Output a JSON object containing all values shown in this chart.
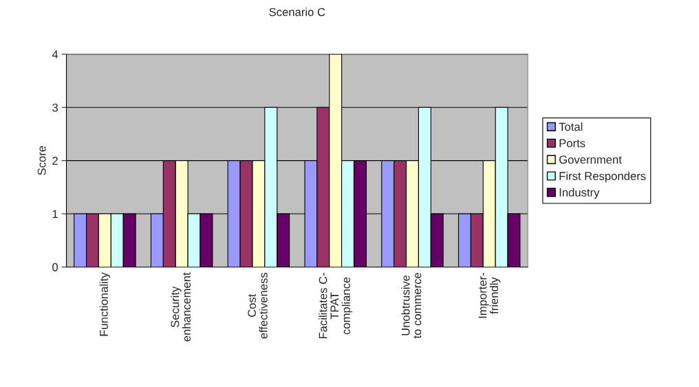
{
  "chart_data": {
    "type": "bar",
    "title": "Scenario C",
    "ylabel": "Score",
    "categories": [
      "Functionality",
      "Security\nenhancement",
      "Cost\neffectiveness",
      "Facilitates C-\nTPAT\ncompliance",
      "Unobtrusive\nto commerce",
      "Importer-\nfriendly"
    ],
    "series": [
      {
        "name": "Total",
        "color": "#9999ff",
        "values": [
          1,
          1,
          2,
          2,
          2,
          1
        ]
      },
      {
        "name": "Ports",
        "color": "#993366",
        "values": [
          1,
          2,
          2,
          3,
          2,
          1
        ]
      },
      {
        "name": "Government",
        "color": "#ffffcc",
        "values": [
          1,
          2,
          2,
          4,
          2,
          2
        ]
      },
      {
        "name": "First Responders",
        "color": "#ccffff",
        "values": [
          1,
          1,
          3,
          2,
          3,
          3
        ]
      },
      {
        "name": "Industry",
        "color": "#660066",
        "values": [
          1,
          1,
          1,
          2,
          1,
          1
        ]
      }
    ],
    "ylim": [
      0,
      4
    ],
    "yticks": [
      0,
      1,
      2,
      3,
      4
    ],
    "grid": "y",
    "legend": "right"
  }
}
